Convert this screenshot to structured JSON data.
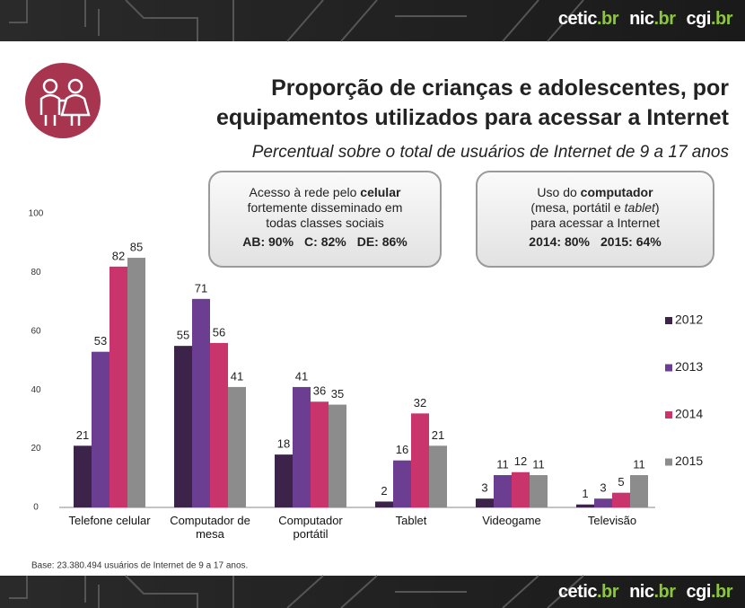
{
  "brand": [
    "cetic",
    ".br",
    "nic",
    ".br",
    "cgi",
    ".br"
  ],
  "title": [
    "Proporção de crianças e adolescentes, por",
    "equipamentos utilizados para acessar a Internet"
  ],
  "subtitle": "Percentual sobre o total de usuários de Internet de 9 a 17 anos",
  "callouts": [
    {
      "intro": "Acesso à rede pelo",
      "highlight": "celular",
      "lines": [
        "fortemente disseminado em",
        "todas classes sociais"
      ],
      "stats": [
        "AB: 90%",
        "C: 82%",
        "DE: 86%"
      ]
    },
    {
      "intro": "Uso do",
      "highlight": "computador",
      "lines": [
        "(mesa, portátil e",
        "tablet",
        ")",
        "para acessar a Internet"
      ],
      "stats": [
        "2014: 80%",
        "2015: 64%"
      ]
    }
  ],
  "note": "Base: 23.380.494 usuários de Internet de 9 a 17 anos.",
  "chart_data": {
    "type": "bar",
    "categories": [
      "Telefone celular",
      "Computador de mesa",
      "Computador portátil",
      "Tablet",
      "Videogame",
      "Televisão"
    ],
    "series": [
      {
        "name": "2012",
        "color": "#3b2349",
        "values": [
          21,
          55,
          18,
          2,
          3,
          1
        ]
      },
      {
        "name": "2013",
        "color": "#6b3e91",
        "values": [
          53,
          71,
          41,
          16,
          11,
          3
        ]
      },
      {
        "name": "2014",
        "color": "#c9346c",
        "values": [
          82,
          56,
          36,
          32,
          12,
          5
        ]
      },
      {
        "name": "2015",
        "color": "#8c8c8c",
        "values": [
          85,
          41,
          35,
          21,
          11,
          11
        ]
      }
    ],
    "ylim": [
      0,
      100
    ],
    "yticks": [
      0,
      20,
      40,
      60,
      80,
      100
    ],
    "grid": false,
    "legend": "right"
  }
}
